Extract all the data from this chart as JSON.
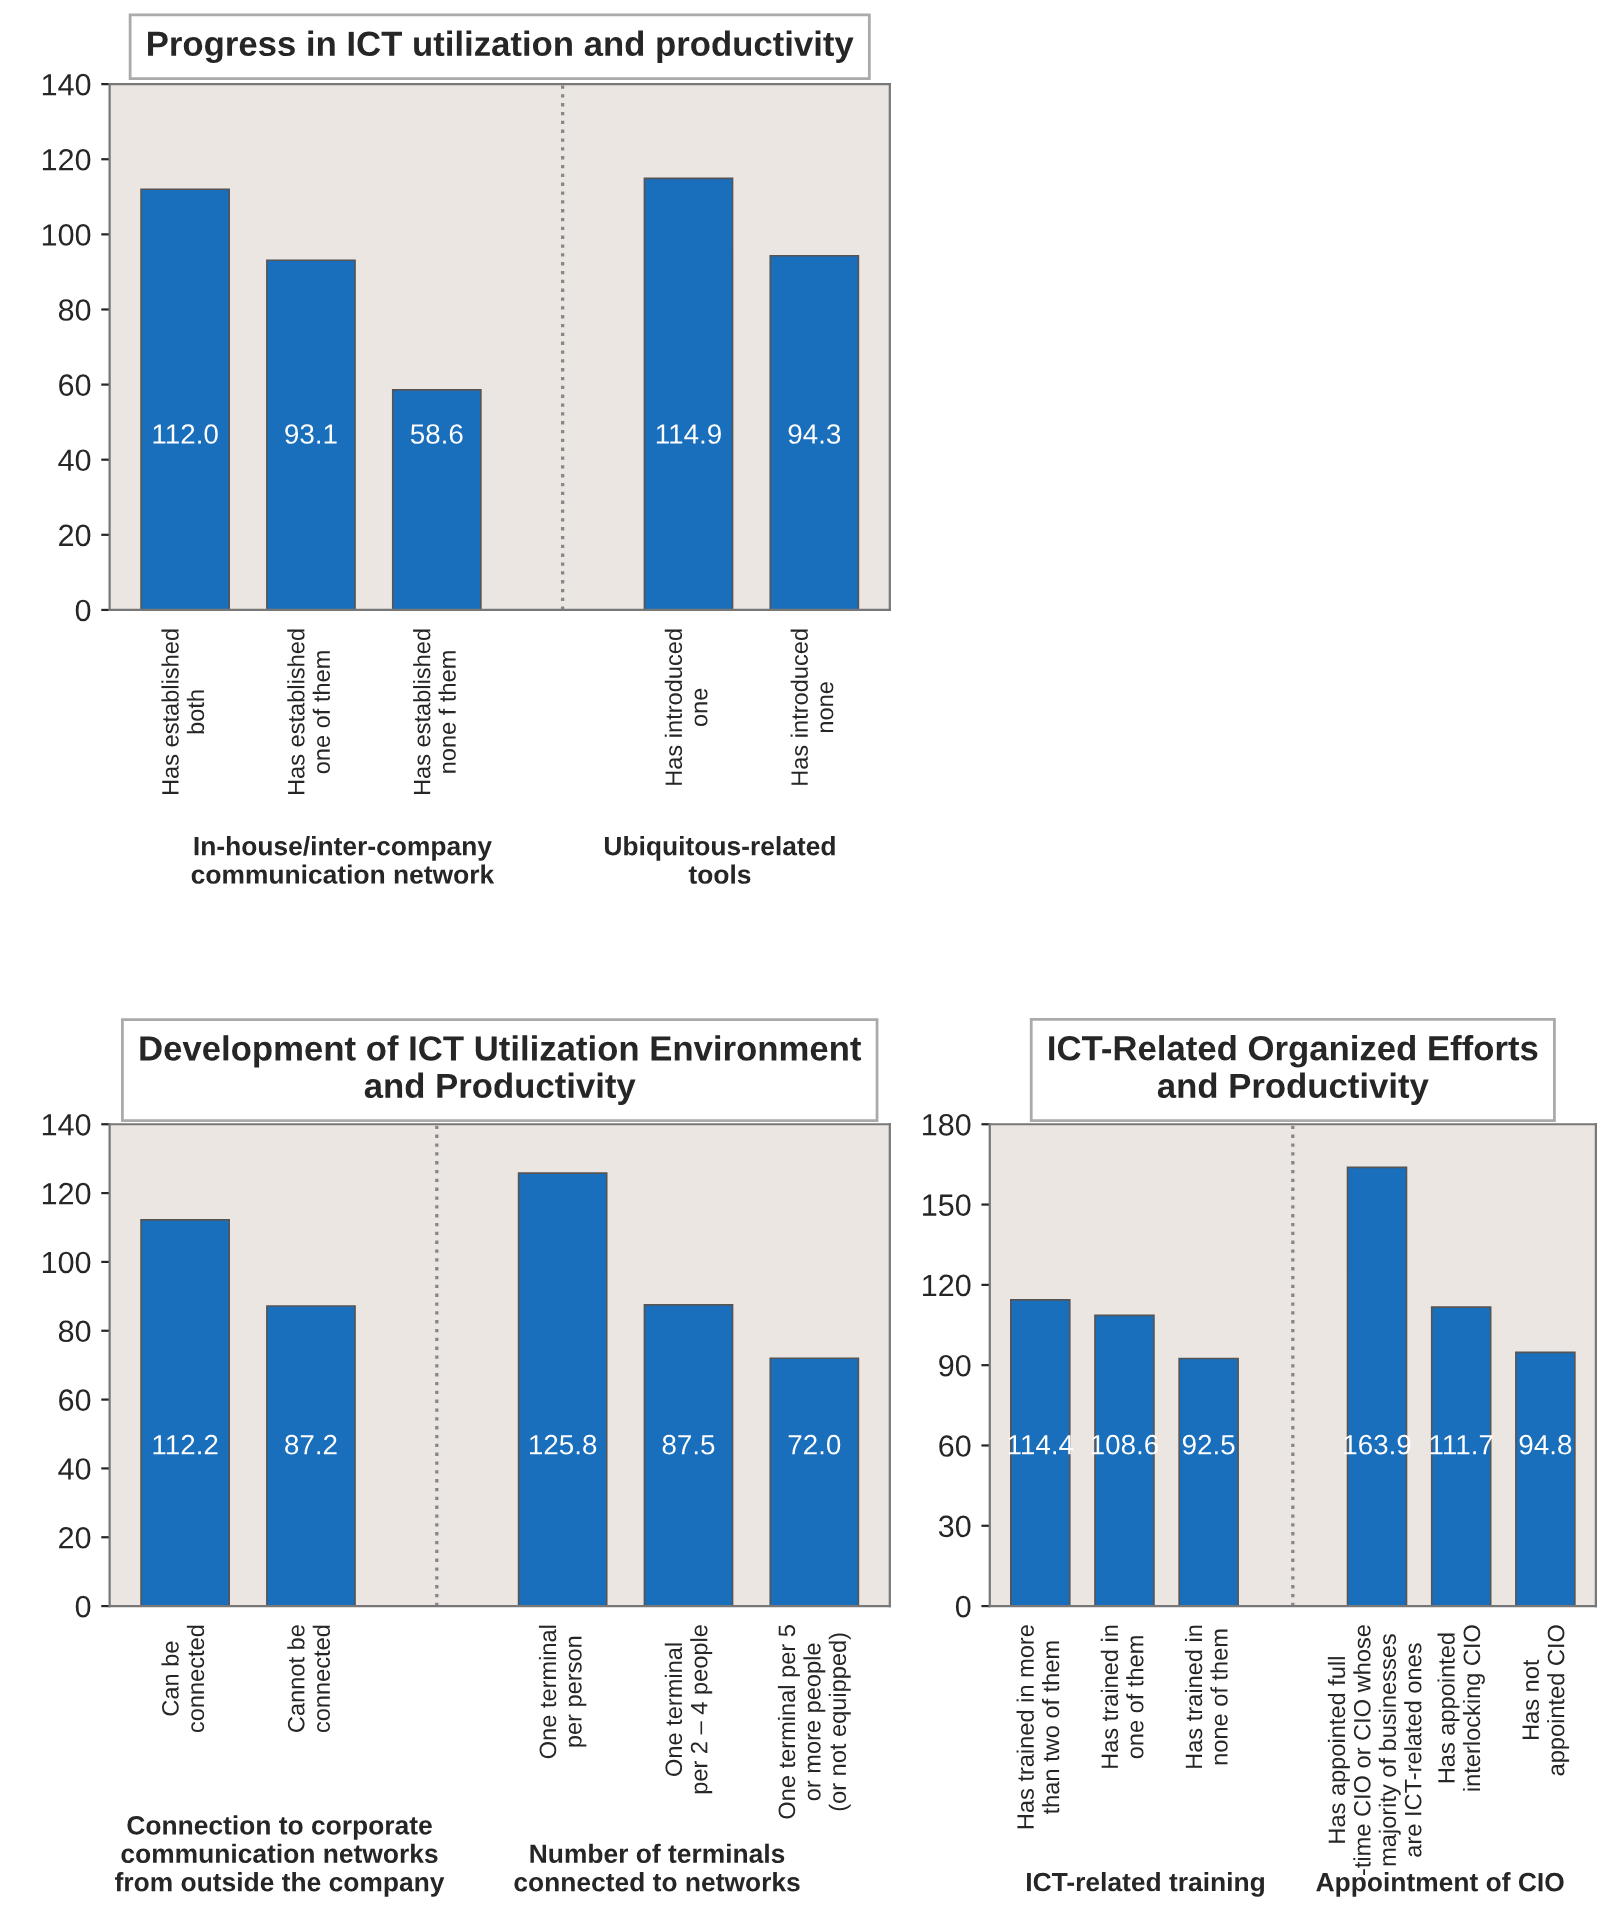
{
  "chart_data": [
    {
      "type": "bar",
      "title": "Progress in ICT utilization and productivity",
      "categories": [
        "Has established\nboth",
        "Has established\none of them",
        "Has established\nnone f them",
        null,
        "Has introduced\none",
        "Has introduced\nnone"
      ],
      "values": [
        112.0,
        93.1,
        58.6,
        null,
        114.9,
        94.3
      ],
      "value_labels": [
        "112.0",
        "93.1",
        "58.6",
        null,
        "114.9",
        "94.3"
      ],
      "color": "#1a6fbd",
      "ylim": [
        0,
        140
      ],
      "yticks": [
        0,
        20,
        40,
        60,
        80,
        100,
        120,
        140
      ],
      "annotations": [
        "In-house/inter-company\ncommunication network",
        "Ubiquitous-related\ntools"
      ]
    },
    {
      "type": "bar",
      "title": "Development of ICT Utilization Environment\nand Productivity",
      "categories": [
        "Can be\nconnected",
        "Cannot be\nconnected",
        null,
        "One terminal\nper person",
        "One terminal\nper 2 – 4 people",
        "One terminal per 5\nor more people\n(or not equipped)"
      ],
      "values": [
        112.2,
        87.2,
        null,
        125.8,
        87.5,
        72.0
      ],
      "value_labels": [
        "112.2",
        "87.2",
        null,
        "125.8",
        "87.5",
        "72.0"
      ],
      "color": "#1a6fbd",
      "ylim": [
        0,
        140
      ],
      "yticks": [
        0,
        20,
        40,
        60,
        80,
        100,
        120,
        140
      ],
      "annotations": [
        "Connection to corporate\ncommunication networks\nfrom outside the company",
        "Number of terminals\nconnected to networks"
      ]
    },
    {
      "type": "bar",
      "title": "ICT-Related Organized Efforts\nand Productivity",
      "categories": [
        "Has trained in more\nthan two of them",
        "Has trained in\none of them",
        "Has trained in\nnone of them",
        null,
        "Has appointed full\n-time CIO or CIO whose\nmajority of businesses\nare ICT-related ones",
        "Has appointed\ninterlocking CIO",
        "Has not\nappointed CIO"
      ],
      "values": [
        114.4,
        108.6,
        92.5,
        null,
        163.9,
        111.7,
        94.8
      ],
      "value_labels": [
        "114.4",
        "108.6",
        "92.5",
        null,
        "163.9",
        "111.7",
        "94.8"
      ],
      "color": "#1a6fbd",
      "ylim": [
        0,
        180
      ],
      "yticks": [
        0,
        30,
        60,
        90,
        120,
        150,
        180
      ],
      "annotations": [
        "ICT-related training",
        "Appointment of CIO"
      ]
    }
  ]
}
